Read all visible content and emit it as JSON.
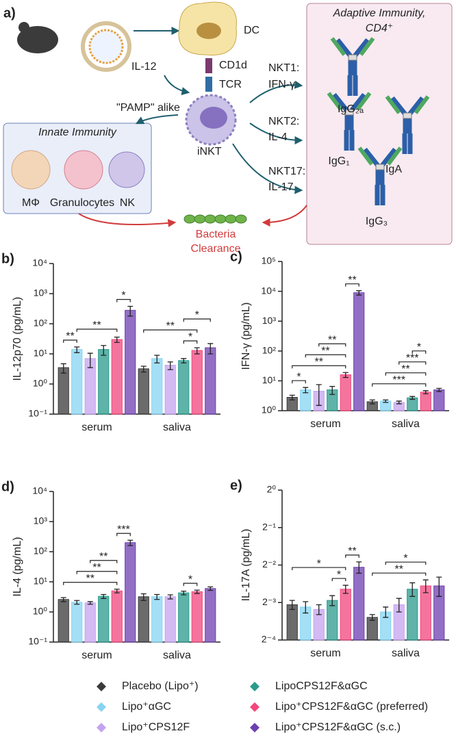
{
  "diagram": {
    "panel": "a)",
    "dc": "DC",
    "il12": "IL-12",
    "cd1d": "CD1d",
    "tcr": "TCR",
    "pamp": "\"PAMP\" alike",
    "inkt": "iNKT",
    "innate": {
      "title": "Innate Immunity",
      "cells": [
        "MΦ",
        "Granulocytes",
        "NK"
      ]
    },
    "nkt": [
      [
        "NKT1:",
        "IFN-γ"
      ],
      [
        "NKT2:",
        "IL-4"
      ],
      [
        "NKT17:",
        "IL-17"
      ]
    ],
    "adaptive": {
      "title": [
        "Adaptive Immunity,",
        "CD4⁺"
      ],
      "antibodies": [
        "IgG₂ₐ",
        "IgG₁",
        "IgA",
        "IgG₃"
      ]
    },
    "clearance": [
      "Bacteria",
      "Clearance"
    ]
  },
  "legend": [
    {
      "name": "Placebo (Lipo⁺)",
      "color": "#3a3a3a"
    },
    {
      "name": "Lipo⁺αGC",
      "color": "#86d4f2"
    },
    {
      "name": "Lipo⁺CPS12F",
      "color": "#c4a3ef"
    },
    {
      "name": "LipoCPS12F&αGC",
      "color": "#2a9a8c"
    },
    {
      "name": "Lipo⁺CPS12F&αGC (preferred)",
      "color": "#f2467c"
    },
    {
      "name": "Lipo⁺CPS12F&αGC (s.c.)",
      "color": "#6e3fb0"
    }
  ],
  "chart_data": [
    {
      "type": "bar",
      "panel": "b)",
      "ylabel": "IL-12p70 (pg/mL)",
      "yscale": "log",
      "categories": [
        "serum",
        "saliva"
      ],
      "ylim": [
        0.1,
        10000
      ],
      "yticks": [
        {
          "value": 0.1,
          "label": "10⁻¹"
        },
        {
          "value": 1,
          "label": "10⁰"
        },
        {
          "value": 10,
          "label": "10¹"
        },
        {
          "value": 100,
          "label": "10²"
        },
        {
          "value": 1000,
          "label": "10³"
        },
        {
          "value": 10000,
          "label": "10⁴"
        }
      ],
      "series": [
        {
          "values": [
            3.5,
            3.2
          ],
          "errors": [
            1.2,
            0.7
          ]
        },
        {
          "values": [
            14,
            7
          ],
          "errors": [
            3,
            2
          ]
        },
        {
          "values": [
            7,
            4.2
          ],
          "errors": [
            3.5,
            1.2
          ]
        },
        {
          "values": [
            14,
            6
          ],
          "errors": [
            5,
            1
          ]
        },
        {
          "values": [
            30,
            13
          ],
          "errors": [
            6,
            3
          ]
        },
        {
          "values": [
            280,
            16
          ],
          "errors": [
            100,
            6
          ]
        }
      ],
      "brackets": [
        {
          "category": 0,
          "from": 0,
          "to": 1,
          "label": "**"
        },
        {
          "category": 0,
          "from": 1,
          "to": 4,
          "label": "**"
        },
        {
          "category": 0,
          "from": 4,
          "to": 5,
          "label": "*"
        },
        {
          "category": 1,
          "from": 3,
          "to": 4,
          "label": "*"
        },
        {
          "category": 1,
          "from": 0,
          "to": 4,
          "label": "**"
        },
        {
          "category": 1,
          "from": 3,
          "to": 5,
          "label": "*"
        }
      ]
    },
    {
      "type": "bar",
      "panel": "c)",
      "ylabel": "IFN-γ (pg/mL)",
      "yscale": "log",
      "categories": [
        "serum",
        "saliva"
      ],
      "ylim": [
        1,
        100000
      ],
      "yticks": [
        {
          "value": 1,
          "label": "10⁰"
        },
        {
          "value": 10,
          "label": "10¹"
        },
        {
          "value": 100,
          "label": "10²"
        },
        {
          "value": 1000,
          "label": "10³"
        },
        {
          "value": 10000,
          "label": "10⁴"
        },
        {
          "value": 100000,
          "label": "10⁵"
        }
      ],
      "series": [
        {
          "values": [
            2.8,
            2
          ],
          "errors": [
            0.5,
            0.3
          ]
        },
        {
          "values": [
            5,
            2.1
          ],
          "errors": [
            1,
            0.2
          ]
        },
        {
          "values": [
            4.5,
            1.9
          ],
          "errors": [
            3,
            0.2
          ]
        },
        {
          "values": [
            5,
            2.7
          ],
          "errors": [
            1.5,
            0.3
          ]
        },
        {
          "values": [
            16,
            4.2
          ],
          "errors": [
            3,
            0.5
          ]
        },
        {
          "values": [
            9000,
            5
          ],
          "errors": [
            1500,
            0.6
          ]
        }
      ],
      "brackets": [
        {
          "category": 0,
          "from": 0,
          "to": 1,
          "label": "*"
        },
        {
          "category": 0,
          "from": 0,
          "to": 4,
          "label": "**"
        },
        {
          "category": 0,
          "from": 1,
          "to": 4,
          "label": "**"
        },
        {
          "category": 0,
          "from": 2,
          "to": 4,
          "label": "**"
        },
        {
          "category": 0,
          "from": 4,
          "to": 5,
          "label": "**"
        },
        {
          "category": 1,
          "from": 0,
          "to": 4,
          "label": "***"
        },
        {
          "category": 1,
          "from": 1,
          "to": 4,
          "label": "**"
        },
        {
          "category": 1,
          "from": 2,
          "to": 4,
          "label": "***"
        },
        {
          "category": 1,
          "from": 3,
          "to": 4,
          "label": "*"
        }
      ]
    },
    {
      "type": "bar",
      "panel": "d)",
      "ylabel": "IL-4 (pg/mL)",
      "yscale": "log",
      "categories": [
        "serum",
        "saliva"
      ],
      "ylim": [
        0.1,
        10000
      ],
      "yticks": [
        {
          "value": 0.1,
          "label": "10⁻¹"
        },
        {
          "value": 1,
          "label": "10⁰"
        },
        {
          "value": 10,
          "label": "10¹"
        },
        {
          "value": 100,
          "label": "10²"
        },
        {
          "value": 1000,
          "label": "10³"
        },
        {
          "value": 10000,
          "label": "10⁴"
        }
      ],
      "series": [
        {
          "values": [
            2.6,
            3.2
          ],
          "errors": [
            0.4,
            0.8
          ]
        },
        {
          "values": [
            2.1,
            3.2
          ],
          "errors": [
            0.3,
            0.6
          ]
        },
        {
          "values": [
            2.0,
            3.2
          ],
          "errors": [
            0.2,
            0.5
          ]
        },
        {
          "values": [
            3.3,
            4.3
          ],
          "errors": [
            0.5,
            0.6
          ]
        },
        {
          "values": [
            5,
            4.7
          ],
          "errors": [
            0.7,
            0.6
          ]
        },
        {
          "values": [
            200,
            6
          ],
          "errors": [
            40,
            0.8
          ]
        }
      ],
      "brackets": [
        {
          "category": 0,
          "from": 0,
          "to": 4,
          "label": "**"
        },
        {
          "category": 0,
          "from": 1,
          "to": 4,
          "label": "**"
        },
        {
          "category": 0,
          "from": 2,
          "to": 4,
          "label": "**"
        },
        {
          "category": 0,
          "from": 4,
          "to": 5,
          "label": "***"
        },
        {
          "category": 1,
          "from": 3,
          "to": 4,
          "label": "*"
        }
      ]
    },
    {
      "type": "bar",
      "panel": "e)",
      "ylabel": "IL-17A (pg/mL)",
      "yscale": "log",
      "categories": [
        "serum",
        "saliva"
      ],
      "ylim": [
        0.0625,
        1
      ],
      "yticks": [
        {
          "value": 0.0625,
          "label": "2⁻⁴"
        },
        {
          "value": 0.125,
          "label": "2⁻³"
        },
        {
          "value": 0.25,
          "label": "2⁻²"
        },
        {
          "value": 0.5,
          "label": "2⁻¹"
        },
        {
          "value": 1,
          "label": "2⁰"
        }
      ],
      "series": [
        {
          "values": [
            0.12,
            0.095
          ],
          "errors": [
            0.01,
            0.005
          ]
        },
        {
          "values": [
            0.115,
            0.105
          ],
          "errors": [
            0.012,
            0.01
          ]
        },
        {
          "values": [
            0.11,
            0.12
          ],
          "errors": [
            0.01,
            0.015
          ]
        },
        {
          "values": [
            0.13,
            0.16
          ],
          "errors": [
            0.012,
            0.02
          ]
        },
        {
          "values": [
            0.16,
            0.17
          ],
          "errors": [
            0.012,
            0.02
          ]
        },
        {
          "values": [
            0.24,
            0.17
          ],
          "errors": [
            0.025,
            0.03
          ]
        }
      ],
      "brackets": [
        {
          "category": 0,
          "from": 3,
          "to": 4,
          "label": "*"
        },
        {
          "category": 0,
          "from": 0,
          "to": 4,
          "label": "*"
        },
        {
          "category": 0,
          "from": 4,
          "to": 5,
          "label": "**"
        },
        {
          "category": 1,
          "from": 0,
          "to": 4,
          "label": "**"
        },
        {
          "category": 1,
          "from": 1,
          "to": 4,
          "label": "*"
        }
      ]
    }
  ]
}
